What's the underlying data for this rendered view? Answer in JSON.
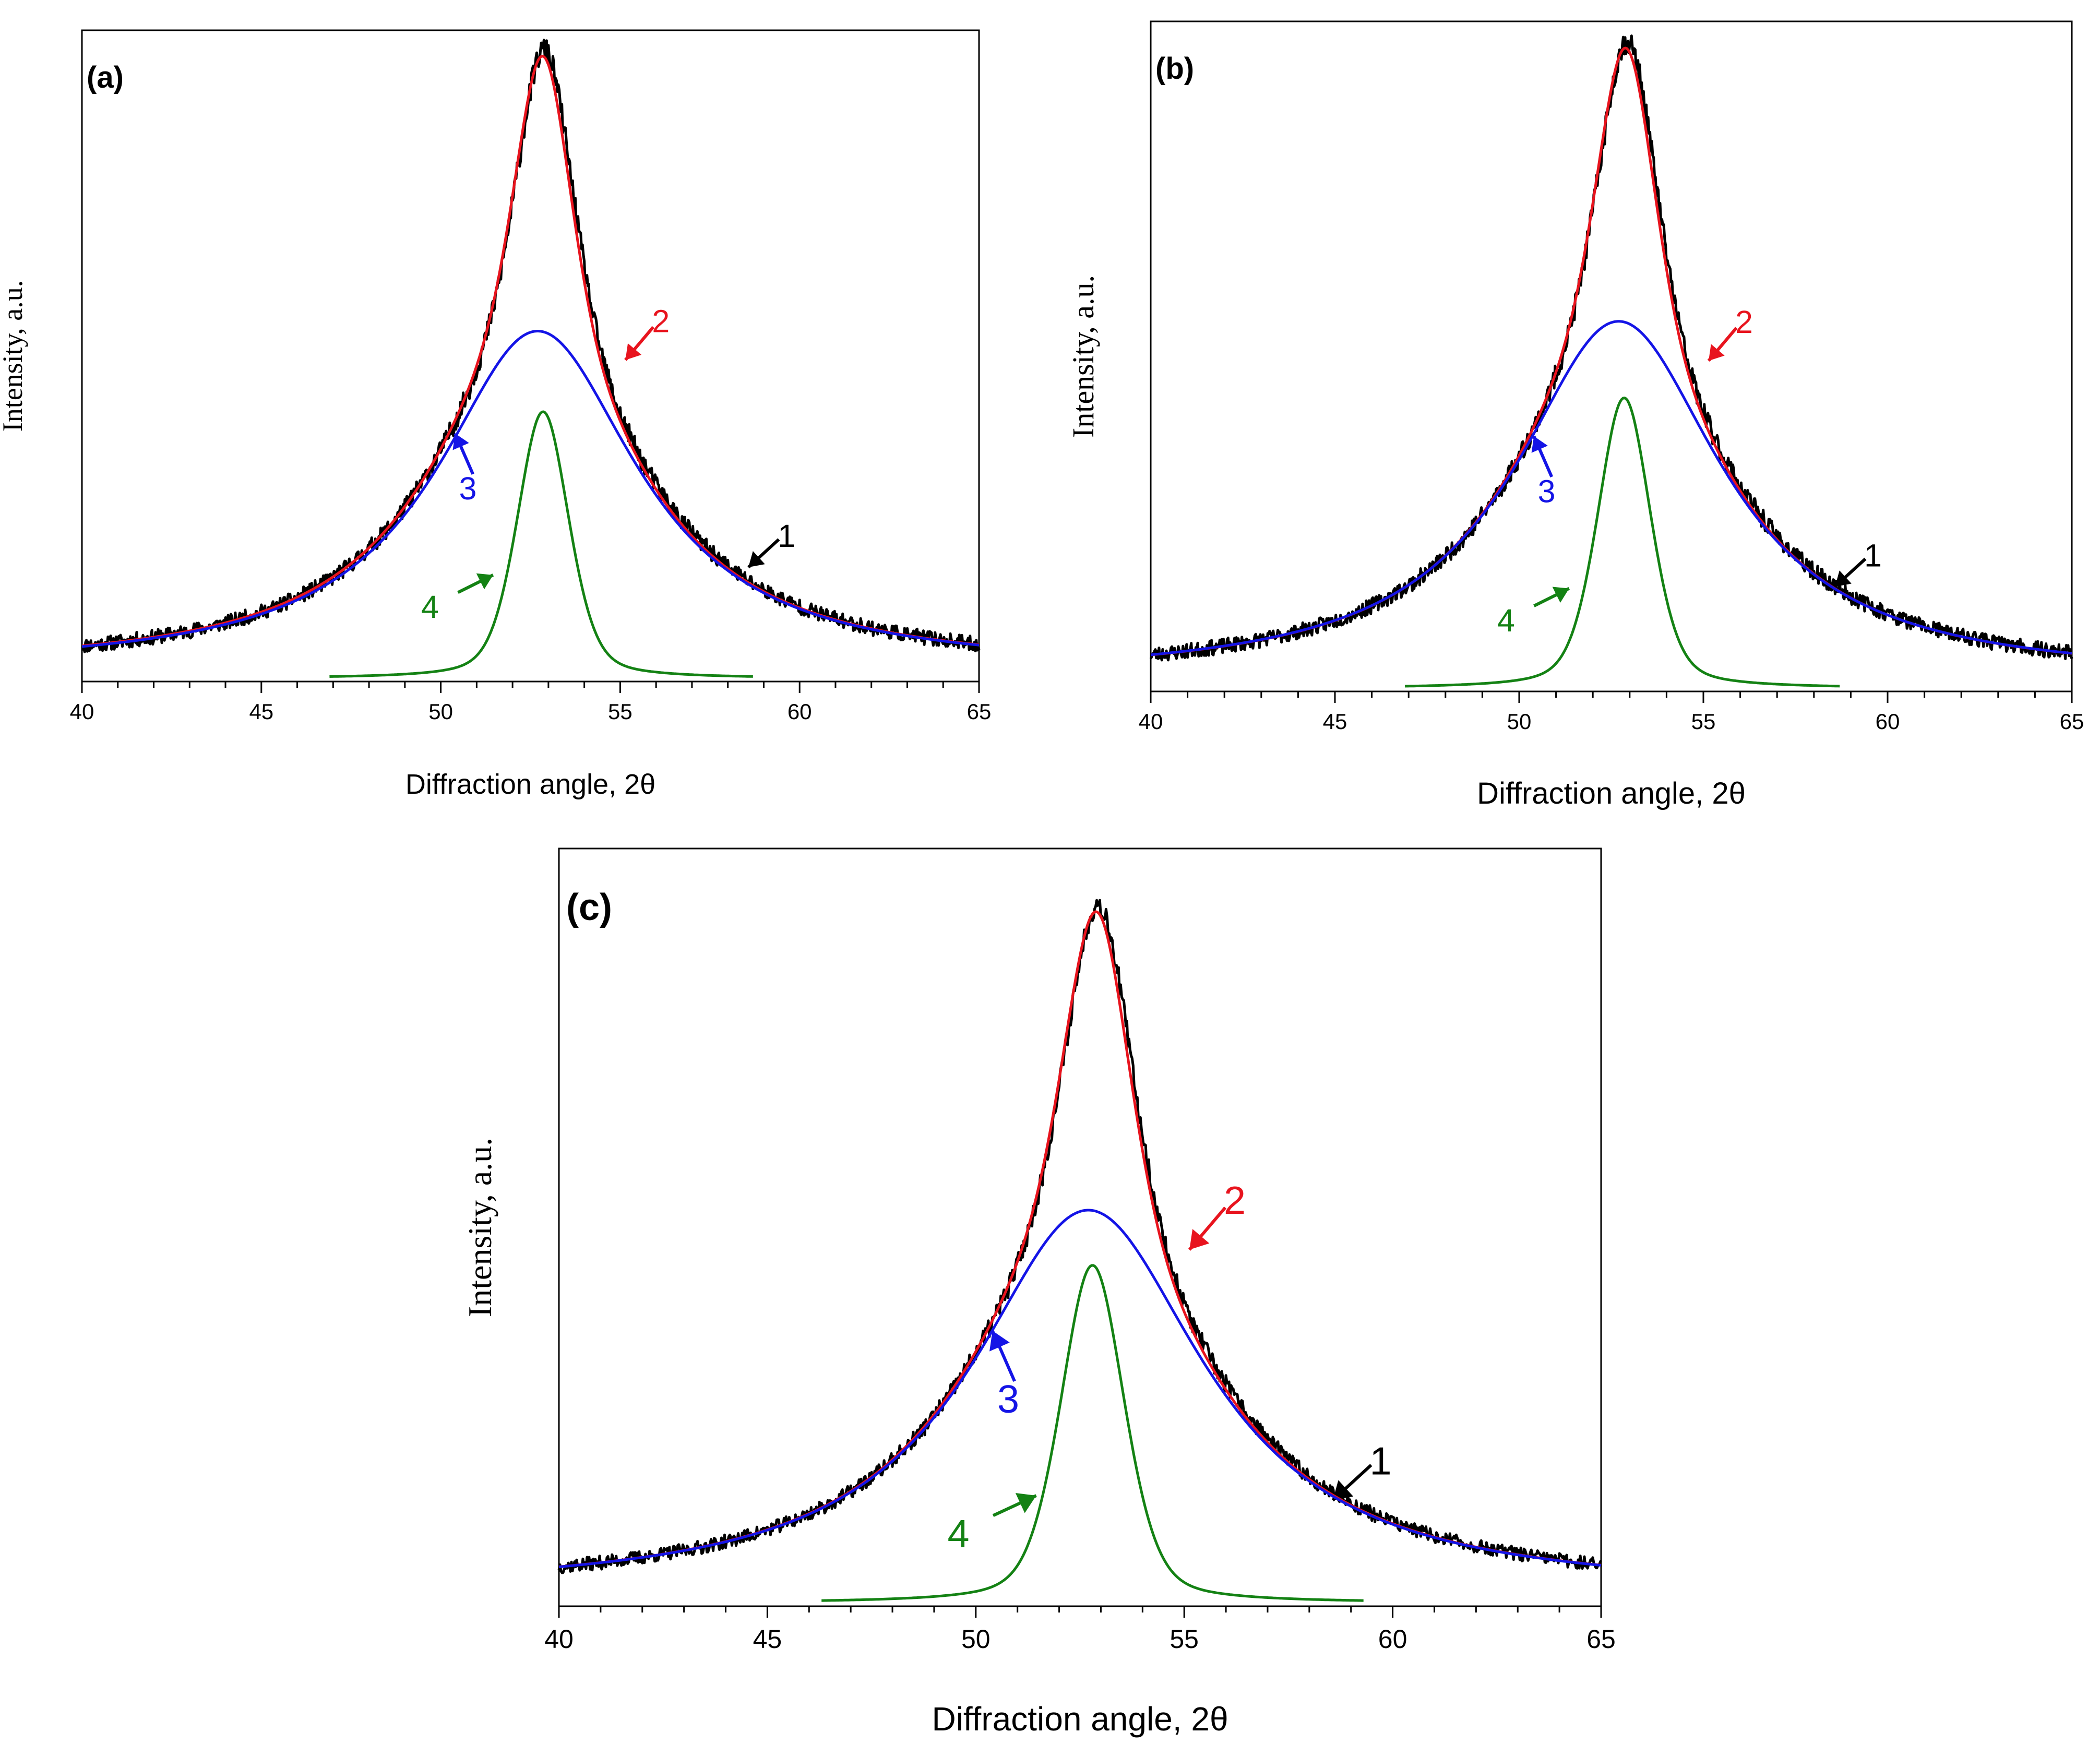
{
  "figure": {
    "description_free": true,
    "colors": {
      "raw": "#000000",
      "fit": "#e8141e",
      "broad": "#1414e6",
      "narrow": "#148214",
      "axis": "#000000"
    }
  },
  "chart_data": [
    {
      "type": "line",
      "panel_label": "(a)",
      "xlabel": "Diffraction angle, 2θ",
      "ylabel": "Intensity, a.u.",
      "xlim": [
        40,
        65
      ],
      "ylim": [
        0,
        1.05
      ],
      "xticks": [
        "40",
        "45",
        "50",
        "55",
        "60",
        "65"
      ],
      "series": [
        {
          "name": "1",
          "role": "raw",
          "label": "1",
          "center": 52.9,
          "amp": 1.0,
          "base": 0.02,
          "noise": 0.012,
          "seed": 11,
          "label_at": [
            58.5,
            0.18
          ]
        },
        {
          "name": "2",
          "role": "fit",
          "label": "2",
          "center": 52.85,
          "amp": 0.99,
          "base": 0.02,
          "label_at": [
            55.0,
            0.51
          ]
        },
        {
          "name": "3",
          "role": "broad",
          "label": "3",
          "center": 52.7,
          "amp": 0.545,
          "hwhm": 3.4,
          "base": 0.02,
          "label_at": [
            50.4,
            0.4
          ]
        },
        {
          "name": "4",
          "role": "narrow",
          "label": "4",
          "center": 52.85,
          "amp": 0.43,
          "hwhm": 0.85,
          "base": 0.005,
          "range": [
            46.9,
            58.7
          ],
          "label_at": [
            51.4,
            0.16
          ]
        }
      ]
    },
    {
      "type": "line",
      "panel_label": "(b)",
      "xlabel": "Diffraction angle, 2θ",
      "ylabel": "Intensity, a.u.",
      "xlim": [
        40,
        65
      ],
      "ylim": [
        0,
        1.05
      ],
      "xticks": [
        "40",
        "45",
        "50",
        "55",
        "60",
        "65"
      ],
      "series": [
        {
          "name": "1",
          "role": "raw",
          "label": "1",
          "center": 52.95,
          "amp": 1.0,
          "base": 0.02,
          "noise": 0.012,
          "seed": 23,
          "label_at": [
            58.5,
            0.16
          ]
        },
        {
          "name": "2",
          "role": "fit",
          "label": "2",
          "center": 52.9,
          "amp": 0.99,
          "base": 0.02,
          "label_at": [
            55.0,
            0.51
          ]
        },
        {
          "name": "3",
          "role": "broad",
          "label": "3",
          "center": 52.7,
          "amp": 0.56,
          "hwhm": 3.4,
          "base": 0.02,
          "label_at": [
            50.4,
            0.4
          ]
        },
        {
          "name": "4",
          "role": "narrow",
          "label": "4",
          "center": 52.85,
          "amp": 0.455,
          "hwhm": 0.85,
          "base": 0.005,
          "range": [
            46.9,
            58.7
          ],
          "label_at": [
            51.3,
            0.15
          ]
        }
      ]
    },
    {
      "type": "line",
      "panel_label": "(c)",
      "xlabel": "Diffraction angle, 2θ",
      "ylabel": "Intensity, a.u.",
      "xlim": [
        40,
        65
      ],
      "ylim": [
        0,
        1.1
      ],
      "xticks": [
        "40",
        "45",
        "50",
        "55",
        "60",
        "65"
      ],
      "series": [
        {
          "name": "1",
          "role": "raw",
          "label": "1",
          "center": 52.95,
          "amp": 1.0,
          "base": 0.02,
          "noise": 0.01,
          "seed": 37,
          "label_at": [
            58.5,
            0.15
          ]
        },
        {
          "name": "2",
          "role": "fit",
          "label": "2",
          "center": 52.9,
          "amp": 0.99,
          "base": 0.02,
          "label_at": [
            55.0,
            0.51
          ]
        },
        {
          "name": "3",
          "role": "broad",
          "label": "3",
          "center": 52.7,
          "amp": 0.555,
          "hwhm": 3.4,
          "base": 0.02,
          "label_at": [
            50.4,
            0.4
          ]
        },
        {
          "name": "4",
          "role": "narrow",
          "label": "4",
          "center": 52.8,
          "amp": 0.49,
          "hwhm": 0.9,
          "base": 0.005,
          "range": [
            46.3,
            59.3
          ],
          "label_at": [
            51.4,
            0.15
          ]
        }
      ]
    }
  ]
}
